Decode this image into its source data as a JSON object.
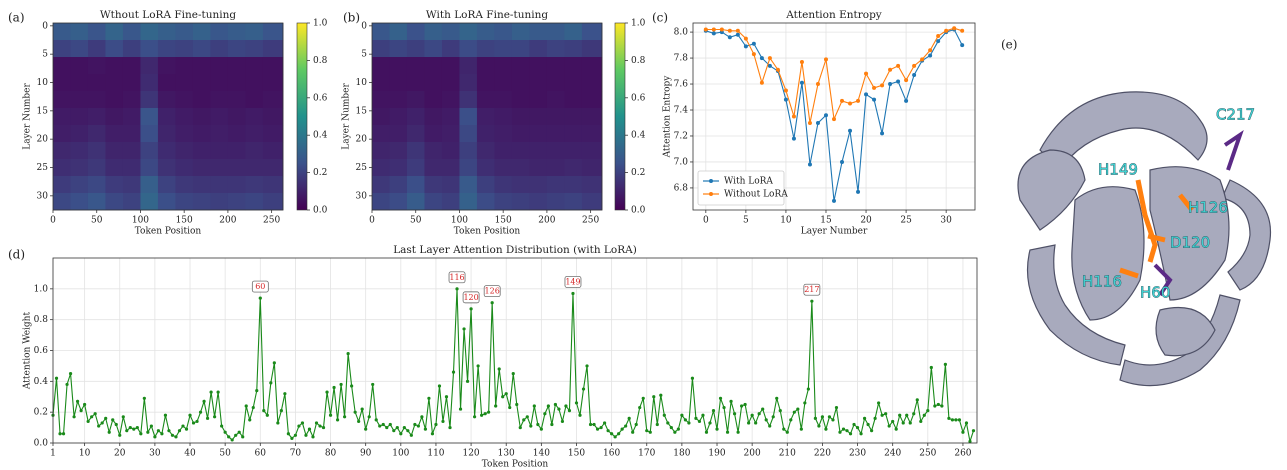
{
  "chart_data": [
    {
      "type": "heatmap",
      "panel_label": "(a)",
      "title": "Wthout LoRA Fine-tuning",
      "xlabel": "Token Position",
      "ylabel": "Layer Number",
      "colormap": "viridis",
      "xbins": [
        0,
        20,
        40,
        60,
        80,
        100,
        120,
        140,
        160,
        180,
        200,
        220,
        240,
        263
      ],
      "ybins": [
        -0.5,
        2.5,
        5.5,
        8.5,
        11.5,
        14.5,
        17.5,
        20.5,
        23.5,
        26.5,
        29.5,
        32.5
      ],
      "xlim": [
        0,
        263
      ],
      "ylim": [
        32.5,
        -0.5
      ],
      "xticks": [
        0,
        50,
        100,
        150,
        200,
        250
      ],
      "yticks": [
        0,
        5,
        10,
        15,
        20,
        25,
        30
      ],
      "clim": [
        0,
        1
      ],
      "cticks": [
        {
          "value": 0,
          "label": "0.0"
        },
        0.2,
        0.4,
        0.6,
        0.8,
        {
          "value": 1,
          "label": "1.0"
        }
      ],
      "z": [
        [
          0.28,
          0.3,
          0.26,
          0.32,
          0.27,
          0.33,
          0.3,
          0.28,
          0.31,
          0.27,
          0.29,
          0.3,
          0.26
        ],
        [
          0.2,
          0.22,
          0.18,
          0.23,
          0.19,
          0.24,
          0.21,
          0.2,
          0.22,
          0.19,
          0.21,
          0.2,
          0.18
        ],
        [
          0.05,
          0.05,
          0.06,
          0.05,
          0.05,
          0.12,
          0.06,
          0.05,
          0.05,
          0.05,
          0.05,
          0.05,
          0.05
        ],
        [
          0.05,
          0.05,
          0.05,
          0.05,
          0.05,
          0.13,
          0.05,
          0.05,
          0.05,
          0.05,
          0.05,
          0.05,
          0.05
        ],
        [
          0.06,
          0.06,
          0.06,
          0.05,
          0.06,
          0.16,
          0.07,
          0.06,
          0.05,
          0.06,
          0.06,
          0.05,
          0.06
        ],
        [
          0.08,
          0.08,
          0.09,
          0.07,
          0.08,
          0.26,
          0.1,
          0.08,
          0.07,
          0.08,
          0.07,
          0.08,
          0.07
        ],
        [
          0.09,
          0.1,
          0.12,
          0.09,
          0.09,
          0.24,
          0.11,
          0.09,
          0.08,
          0.09,
          0.08,
          0.09,
          0.08
        ],
        [
          0.12,
          0.13,
          0.15,
          0.11,
          0.11,
          0.2,
          0.13,
          0.11,
          0.1,
          0.1,
          0.1,
          0.11,
          0.1
        ],
        [
          0.14,
          0.15,
          0.17,
          0.13,
          0.13,
          0.22,
          0.15,
          0.13,
          0.12,
          0.12,
          0.12,
          0.12,
          0.12
        ],
        [
          0.18,
          0.2,
          0.22,
          0.18,
          0.17,
          0.3,
          0.2,
          0.17,
          0.16,
          0.16,
          0.16,
          0.17,
          0.16
        ],
        [
          0.22,
          0.24,
          0.27,
          0.22,
          0.2,
          0.33,
          0.24,
          0.21,
          0.2,
          0.19,
          0.2,
          0.21,
          0.19
        ]
      ]
    },
    {
      "type": "heatmap",
      "panel_label": "(b)",
      "title": "With LoRA Fine-tuning",
      "xlabel": "Token Position",
      "ylabel": "Layer Number",
      "colormap": "viridis",
      "xbins": [
        0,
        20,
        40,
        60,
        80,
        100,
        120,
        140,
        160,
        180,
        200,
        220,
        240,
        263
      ],
      "ybins": [
        -0.5,
        2.5,
        5.5,
        8.5,
        11.5,
        14.5,
        17.5,
        20.5,
        23.5,
        26.5,
        29.5,
        32.5
      ],
      "xlim": [
        0,
        263
      ],
      "ylim": [
        32.5,
        -0.5
      ],
      "xticks": [
        0,
        50,
        100,
        150,
        200,
        250
      ],
      "yticks": [
        0,
        5,
        10,
        15,
        20,
        25,
        30
      ],
      "clim": [
        0,
        1
      ],
      "cticks": [
        {
          "value": 0,
          "label": "0.0"
        },
        0.2,
        0.4,
        0.6,
        0.8,
        {
          "value": 1,
          "label": "1.0"
        }
      ],
      "z": [
        [
          0.27,
          0.31,
          0.25,
          0.3,
          0.28,
          0.32,
          0.29,
          0.27,
          0.3,
          0.28,
          0.28,
          0.31,
          0.25
        ],
        [
          0.19,
          0.21,
          0.19,
          0.22,
          0.18,
          0.23,
          0.2,
          0.21,
          0.21,
          0.18,
          0.2,
          0.19,
          0.17
        ],
        [
          0.05,
          0.05,
          0.05,
          0.05,
          0.05,
          0.11,
          0.05,
          0.05,
          0.05,
          0.05,
          0.05,
          0.05,
          0.05
        ],
        [
          0.05,
          0.05,
          0.05,
          0.05,
          0.05,
          0.12,
          0.05,
          0.05,
          0.05,
          0.05,
          0.05,
          0.05,
          0.05
        ],
        [
          0.06,
          0.06,
          0.07,
          0.05,
          0.06,
          0.15,
          0.06,
          0.06,
          0.05,
          0.05,
          0.06,
          0.05,
          0.05
        ],
        [
          0.07,
          0.08,
          0.1,
          0.07,
          0.08,
          0.24,
          0.09,
          0.08,
          0.07,
          0.07,
          0.07,
          0.07,
          0.07
        ],
        [
          0.09,
          0.09,
          0.12,
          0.08,
          0.09,
          0.22,
          0.1,
          0.09,
          0.08,
          0.08,
          0.08,
          0.08,
          0.08
        ],
        [
          0.11,
          0.12,
          0.16,
          0.11,
          0.1,
          0.19,
          0.12,
          0.1,
          0.1,
          0.1,
          0.1,
          0.1,
          0.1
        ],
        [
          0.13,
          0.14,
          0.18,
          0.12,
          0.12,
          0.21,
          0.14,
          0.12,
          0.12,
          0.11,
          0.11,
          0.12,
          0.11
        ],
        [
          0.17,
          0.19,
          0.24,
          0.17,
          0.16,
          0.28,
          0.19,
          0.16,
          0.15,
          0.15,
          0.16,
          0.16,
          0.15
        ],
        [
          0.21,
          0.23,
          0.29,
          0.21,
          0.19,
          0.31,
          0.23,
          0.2,
          0.19,
          0.18,
          0.19,
          0.2,
          0.18
        ]
      ]
    },
    {
      "type": "line",
      "panel_label": "(c)",
      "title": "Attention Entropy",
      "xlabel": "Layer Number",
      "ylabel": "Attention Entropy",
      "grid": true,
      "legend": "lower left",
      "marker_size": 2,
      "x": [
        0,
        1,
        2,
        3,
        4,
        5,
        6,
        7,
        8,
        9,
        10,
        11,
        12,
        13,
        14,
        15,
        16,
        17,
        18,
        19,
        20,
        21,
        22,
        23,
        24,
        25,
        26,
        27,
        28,
        29,
        30,
        31,
        32
      ],
      "xlim": [
        -1.6,
        33.6
      ],
      "ylim": [
        6.63,
        8.07
      ],
      "xticks": [
        0,
        5,
        10,
        15,
        20,
        25,
        30
      ],
      "yticks": [
        6.8,
        {
          "value": 7,
          "label": "7.0"
        },
        7.2,
        7.4,
        7.6,
        7.8,
        {
          "value": 8,
          "label": "8.0"
        }
      ],
      "series": [
        {
          "name": "With LoRA",
          "color": "#1f77b4",
          "values": [
            8.01,
            7.99,
            8.0,
            7.96,
            7.98,
            7.89,
            7.91,
            7.8,
            7.74,
            7.7,
            7.48,
            7.18,
            7.61,
            6.98,
            7.3,
            7.36,
            6.7,
            7.0,
            7.24,
            6.77,
            7.52,
            7.48,
            7.22,
            7.6,
            7.62,
            7.47,
            7.67,
            7.78,
            7.82,
            7.93,
            8.0,
            8.02,
            7.9
          ]
        },
        {
          "name": "Without LoRA",
          "color": "#ff7f0e",
          "values": [
            8.02,
            8.02,
            8.02,
            8.01,
            8.01,
            7.95,
            7.83,
            7.61,
            7.8,
            7.71,
            7.55,
            7.35,
            7.77,
            7.3,
            7.6,
            7.79,
            7.33,
            7.47,
            7.45,
            7.47,
            7.68,
            7.57,
            7.59,
            7.71,
            7.74,
            7.63,
            7.74,
            7.79,
            7.86,
            7.97,
            8.01,
            8.03,
            8.01
          ]
        }
      ]
    },
    {
      "type": "line",
      "panel_label": "(d)",
      "title": "Last Layer Attention Distribution (with LoRA)",
      "xlabel": "Token Position",
      "ylabel": "Attention Weight",
      "grid": true,
      "marker_size": 1.6,
      "xlim": [
        1,
        264
      ],
      "ylim": [
        0,
        1.2
      ],
      "xticks": [
        1,
        10,
        20,
        30,
        40,
        50,
        60,
        70,
        80,
        90,
        100,
        110,
        120,
        130,
        140,
        150,
        160,
        170,
        180,
        190,
        200,
        210,
        220,
        230,
        240,
        250,
        260
      ],
      "yticks": [
        {
          "value": 0,
          "label": "0.0"
        },
        0.2,
        0.4,
        0.6,
        0.8,
        {
          "value": 1,
          "label": "1.0"
        }
      ],
      "highlights": [
        60,
        116,
        120,
        126,
        149,
        217
      ],
      "x": [
        1,
        2,
        3,
        4,
        5,
        6,
        7,
        8,
        9,
        10,
        11,
        12,
        13,
        14,
        15,
        16,
        17,
        18,
        19,
        20,
        21,
        22,
        23,
        24,
        25,
        26,
        27,
        28,
        29,
        30,
        31,
        32,
        33,
        34,
        35,
        36,
        37,
        38,
        39,
        40,
        41,
        42,
        43,
        44,
        45,
        46,
        47,
        48,
        49,
        50,
        51,
        52,
        53,
        54,
        55,
        56,
        57,
        58,
        59,
        60,
        61,
        62,
        63,
        64,
        65,
        66,
        67,
        68,
        69,
        70,
        71,
        72,
        73,
        74,
        75,
        76,
        77,
        78,
        79,
        80,
        81,
        82,
        83,
        84,
        85,
        86,
        87,
        88,
        89,
        90,
        91,
        92,
        93,
        94,
        95,
        96,
        97,
        98,
        99,
        100,
        101,
        102,
        103,
        104,
        105,
        106,
        107,
        108,
        109,
        110,
        111,
        112,
        113,
        114,
        115,
        116,
        117,
        118,
        119,
        120,
        121,
        122,
        123,
        124,
        125,
        126,
        127,
        128,
        129,
        130,
        131,
        132,
        133,
        134,
        135,
        136,
        137,
        138,
        139,
        140,
        141,
        142,
        143,
        144,
        145,
        146,
        147,
        148,
        149,
        150,
        151,
        152,
        153,
        154,
        155,
        156,
        157,
        158,
        159,
        160,
        161,
        162,
        163,
        164,
        165,
        166,
        167,
        168,
        169,
        170,
        171,
        172,
        173,
        174,
        175,
        176,
        177,
        178,
        179,
        180,
        181,
        182,
        183,
        184,
        185,
        186,
        187,
        188,
        189,
        190,
        191,
        192,
        193,
        194,
        195,
        196,
        197,
        198,
        199,
        200,
        201,
        202,
        203,
        204,
        205,
        206,
        207,
        208,
        209,
        210,
        211,
        212,
        213,
        214,
        215,
        216,
        217,
        218,
        219,
        220,
        221,
        222,
        223,
        224,
        225,
        226,
        227,
        228,
        229,
        230,
        231,
        232,
        233,
        234,
        235,
        236,
        237,
        238,
        239,
        240,
        241,
        242,
        243,
        244,
        245,
        246,
        247,
        248,
        249,
        250,
        251,
        252,
        253,
        254,
        255,
        256,
        257,
        258,
        259,
        260,
        261,
        262,
        263
      ],
      "series": [
        {
          "name": "Attention Weight",
          "color": "#1a8a1a",
          "values": [
            0.18,
            0.42,
            0.06,
            0.06,
            0.38,
            0.45,
            0.17,
            0.27,
            0.21,
            0.25,
            0.14,
            0.17,
            0.19,
            0.11,
            0.13,
            0.16,
            0.07,
            0.15,
            0.12,
            0.05,
            0.17,
            0.08,
            0.1,
            0.09,
            0.1,
            0.06,
            0.29,
            0.07,
            0.11,
            0.04,
            0.08,
            0.06,
            0.18,
            0.08,
            0.05,
            0.04,
            0.08,
            0.11,
            0.09,
            0.18,
            0.13,
            0.14,
            0.2,
            0.27,
            0.16,
            0.33,
            0.17,
            0.33,
            0.11,
            0.07,
            0.04,
            0.02,
            0.05,
            0.07,
            0.04,
            0.24,
            0.15,
            0.23,
            0.34,
            0.94,
            0.21,
            0.18,
            0.39,
            0.52,
            0.13,
            0.21,
            0.32,
            0.06,
            0.03,
            0.05,
            0.11,
            0.13,
            0.05,
            0.09,
            0.04,
            0.13,
            0.11,
            0.1,
            0.33,
            0.18,
            0.36,
            0.15,
            0.38,
            0.17,
            0.58,
            0.37,
            0.2,
            0.14,
            0.22,
            0.09,
            0.17,
            0.38,
            0.15,
            0.11,
            0.12,
            0.1,
            0.12,
            0.08,
            0.1,
            0.06,
            0.1,
            0.08,
            0.05,
            0.12,
            0.11,
            0.17,
            0.09,
            0.29,
            0.06,
            0.12,
            0.37,
            0.14,
            0.3,
            0.1,
            0.46,
            1.0,
            0.22,
            0.74,
            0.4,
            0.87,
            0.17,
            0.5,
            0.18,
            0.19,
            0.2,
            0.91,
            0.24,
            0.48,
            0.3,
            0.32,
            0.23,
            0.45,
            0.25,
            0.1,
            0.15,
            0.17,
            0.11,
            0.24,
            0.12,
            0.09,
            0.19,
            0.24,
            0.12,
            0.25,
            0.22,
            0.14,
            0.24,
            0.21,
            0.97,
            0.26,
            0.18,
            0.35,
            0.5,
            0.12,
            0.12,
            0.09,
            0.1,
            0.13,
            0.08,
            0.06,
            0.04,
            0.06,
            0.09,
            0.11,
            0.16,
            0.07,
            0.12,
            0.23,
            0.29,
            0.08,
            0.07,
            0.3,
            0.12,
            0.31,
            0.18,
            0.13,
            0.1,
            0.07,
            0.09,
            0.18,
            0.15,
            0.13,
            0.42,
            0.16,
            0.14,
            0.18,
            0.07,
            0.13,
            0.21,
            0.09,
            0.29,
            0.23,
            0.07,
            0.27,
            0.19,
            0.07,
            0.24,
            0.25,
            0.13,
            0.18,
            0.13,
            0.19,
            0.22,
            0.15,
            0.11,
            0.17,
            0.29,
            0.21,
            0.09,
            0.07,
            0.15,
            0.2,
            0.22,
            0.09,
            0.26,
            0.35,
            0.92,
            0.16,
            0.11,
            0.17,
            0.09,
            0.17,
            0.15,
            0.23,
            0.07,
            0.09,
            0.08,
            0.06,
            0.12,
            0.1,
            0.06,
            0.16,
            0.12,
            0.08,
            0.16,
            0.26,
            0.18,
            0.19,
            0.11,
            0.14,
            0.09,
            0.18,
            0.13,
            0.18,
            0.13,
            0.19,
            0.28,
            0.14,
            0.18,
            0.21,
            0.49,
            0.24,
            0.25,
            0.24,
            0.51,
            0.16,
            0.15,
            0.15,
            0.15,
            0.07,
            0.13,
            0.01,
            0.08
          ]
        }
      ]
    }
  ],
  "image_panel": {
    "panel_label": "(e)",
    "residues": [
      "C217",
      "H149",
      "H126",
      "D120",
      "H116",
      "H60"
    ]
  }
}
